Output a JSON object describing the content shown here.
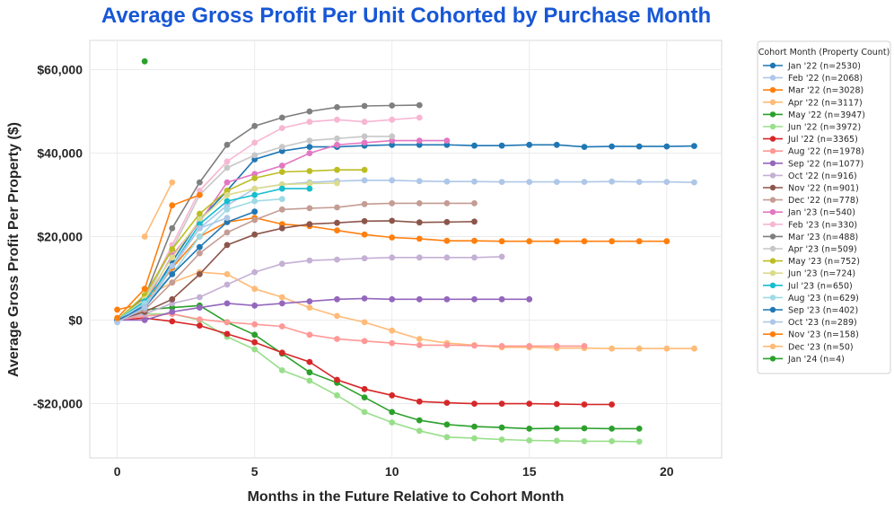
{
  "chart_data": {
    "type": "line",
    "title": "Average Gross Profit Per Unit Cohorted by Purchase Month",
    "xlabel": "Months in the Future Relative to Cohort Month",
    "ylabel": "Average Gross Profit Per Property ($)",
    "xlim": [
      -1,
      22
    ],
    "ylim": [
      -33000,
      67000
    ],
    "xticks": [
      0,
      5,
      10,
      15,
      20
    ],
    "yticks": [
      -20000,
      0,
      20000,
      40000,
      60000
    ],
    "ytick_labels": [
      "-$20,000",
      "$0",
      "$20,000",
      "$40,000",
      "$60,000"
    ],
    "grid": true,
    "legend": {
      "title": "Cohort Month (Property Count)",
      "location": "outside-right"
    },
    "series": [
      {
        "name": "Jan '22 (n=2530)",
        "color": "#1f77b4",
        "x": [
          0,
          1,
          2,
          3,
          4,
          5,
          6,
          7,
          8,
          9,
          10,
          11,
          12,
          13,
          14,
          15,
          16,
          17,
          18,
          19,
          20,
          21
        ],
        "y": [
          0,
          3500,
          14000,
          24000,
          31000,
          38500,
          40500,
          41500,
          41500,
          41800,
          42000,
          42000,
          42000,
          41800,
          41800,
          42000,
          42000,
          41500,
          41600,
          41600,
          41600,
          41700
        ]
      },
      {
        "name": "Feb '22 (n=2068)",
        "color": "#aec7e8",
        "x": [
          0,
          1,
          2,
          3,
          4,
          5,
          6,
          7,
          8,
          9,
          10,
          11,
          12,
          13,
          14,
          15,
          16,
          17,
          18,
          19,
          20,
          21
        ],
        "y": [
          0,
          3000,
          12500,
          22000,
          27500,
          31500,
          32500,
          33000,
          33300,
          33500,
          33500,
          33300,
          33200,
          33200,
          33100,
          33100,
          33100,
          33100,
          33200,
          33100,
          33100,
          33000
        ]
      },
      {
        "name": "Mar '22 (n=3028)",
        "color": "#ff7f0e",
        "x": [
          0,
          1,
          2,
          3,
          4,
          5,
          6,
          7,
          8,
          9,
          10,
          11,
          12,
          13,
          14,
          15,
          16,
          17,
          18,
          19,
          20
        ],
        "y": [
          2500,
          4000,
          12500,
          20000,
          23500,
          24500,
          23000,
          22500,
          21500,
          20500,
          19800,
          19500,
          19000,
          19000,
          18900,
          18900,
          18900,
          18900,
          18900,
          18900,
          18900
        ]
      },
      {
        "name": "Apr '22 (n=3117)",
        "color": "#ffbb78",
        "x": [
          0,
          1,
          2,
          3,
          4,
          5,
          6,
          7,
          8,
          9,
          10,
          11,
          12,
          13,
          14,
          15,
          16,
          17,
          18,
          19,
          20,
          21
        ],
        "y": [
          0,
          5500,
          9000,
          11500,
          11000,
          7500,
          5500,
          3000,
          1000,
          -500,
          -2500,
          -4500,
          -5500,
          -6000,
          -6500,
          -6500,
          -6700,
          -6700,
          -6800,
          -6800,
          -6800,
          -6800
        ]
      },
      {
        "name": "May '22 (n=3947)",
        "color": "#2ca02c",
        "x": [
          0,
          1,
          2,
          3,
          4,
          5,
          6,
          7,
          8,
          9,
          10,
          11,
          12,
          13,
          14,
          15,
          16,
          17,
          18,
          19
        ],
        "y": [
          0,
          2500,
          3000,
          3500,
          -500,
          -3500,
          -8000,
          -12500,
          -15000,
          -18500,
          -22000,
          -24000,
          -25000,
          -25500,
          -25700,
          -26000,
          -25900,
          -25900,
          -26000,
          -26000
        ]
      },
      {
        "name": "Jun '22 (n=3972)",
        "color": "#98df8a",
        "x": [
          0,
          1,
          2,
          3,
          4,
          5,
          6,
          7,
          8,
          9,
          10,
          11,
          12,
          13,
          14,
          15,
          16,
          17,
          18,
          19
        ],
        "y": [
          0,
          1500,
          1500,
          0,
          -4000,
          -7000,
          -12000,
          -14500,
          -18000,
          -22000,
          -24500,
          -26500,
          -28000,
          -28300,
          -28600,
          -28800,
          -28900,
          -29000,
          -29000,
          -29100
        ]
      },
      {
        "name": "Jul '22 (n=3365)",
        "color": "#d62728",
        "x": [
          0,
          1,
          2,
          3,
          4,
          5,
          6,
          7,
          8,
          9,
          10,
          11,
          12,
          13,
          14,
          15,
          16,
          17,
          18
        ],
        "y": [
          0,
          500,
          -300,
          -1300,
          -3300,
          -5300,
          -7800,
          -10000,
          -14300,
          -16500,
          -18000,
          -19500,
          -19800,
          -20000,
          -20000,
          -20000,
          -20100,
          -20200,
          -20200
        ]
      },
      {
        "name": "Aug '22 (n=1978)",
        "color": "#ff9896",
        "x": [
          0,
          1,
          2,
          3,
          4,
          5,
          6,
          7,
          8,
          9,
          10,
          11,
          12,
          13,
          14,
          15,
          16,
          17
        ],
        "y": [
          0,
          1000,
          1500,
          200,
          -500,
          -1000,
          -1500,
          -3500,
          -4500,
          -5000,
          -5500,
          -6000,
          -6000,
          -6100,
          -6200,
          -6200,
          -6200,
          -6200
        ]
      },
      {
        "name": "Sep '22 (n=1077)",
        "color": "#9467bd",
        "x": [
          0,
          1,
          2,
          3,
          4,
          5,
          6,
          7,
          8,
          9,
          10,
          11,
          12,
          13,
          14,
          15
        ],
        "y": [
          0,
          0,
          2000,
          3000,
          4000,
          3500,
          4000,
          4500,
          5000,
          5200,
          5000,
          5000,
          5000,
          5000,
          5000,
          5000
        ]
      },
      {
        "name": "Oct '22 (n=916)",
        "color": "#c5b0d5",
        "x": [
          0,
          1,
          2,
          3,
          4,
          5,
          6,
          7,
          8,
          9,
          10,
          11,
          12,
          13,
          14
        ],
        "y": [
          0,
          1500,
          4000,
          5500,
          8500,
          11500,
          13500,
          14300,
          14500,
          14800,
          15000,
          15000,
          15000,
          15000,
          15200
        ]
      },
      {
        "name": "Nov '22 (n=901)",
        "color": "#8c564b",
        "x": [
          0,
          1,
          2,
          3,
          4,
          5,
          6,
          7,
          8,
          9,
          10,
          11,
          12,
          13
        ],
        "y": [
          0,
          2000,
          5000,
          11000,
          18000,
          20500,
          22000,
          23000,
          23300,
          23700,
          23800,
          23400,
          23500,
          23600
        ]
      },
      {
        "name": "Dec '22 (n=778)",
        "color": "#c49c94",
        "x": [
          0,
          1,
          2,
          3,
          4,
          5,
          6,
          7,
          8,
          9,
          10,
          11,
          12,
          13
        ],
        "y": [
          0,
          2500,
          9000,
          16000,
          21000,
          24000,
          26500,
          26800,
          27000,
          27800,
          28000,
          28000,
          28000,
          28000
        ]
      },
      {
        "name": "Jan '23 (n=540)",
        "color": "#e377c2",
        "x": [
          0,
          1,
          2,
          3,
          4,
          5,
          6,
          7,
          8,
          9,
          10,
          11,
          12
        ],
        "y": [
          0,
          4000,
          15500,
          23500,
          33000,
          35000,
          37000,
          40000,
          42000,
          42500,
          43000,
          43000,
          43000
        ]
      },
      {
        "name": "Feb '23 (n=330)",
        "color": "#f7b6d2",
        "x": [
          0,
          1,
          2,
          3,
          4,
          5,
          6,
          7,
          8,
          9,
          10,
          11
        ],
        "y": [
          0,
          5000,
          18000,
          31000,
          38000,
          42500,
          46000,
          47500,
          48000,
          47500,
          48000,
          48500
        ]
      },
      {
        "name": "Mar '23 (n=488)",
        "color": "#7f7f7f",
        "x": [
          0,
          1,
          2,
          3,
          4,
          5,
          6,
          7,
          8,
          9,
          10,
          11
        ],
        "y": [
          0,
          5500,
          22000,
          33000,
          42000,
          46500,
          48500,
          50000,
          51000,
          51300,
          51400,
          51500
        ]
      },
      {
        "name": "Apr '23 (n=509)",
        "color": "#c7c7c7",
        "x": [
          0,
          1,
          2,
          3,
          4,
          5,
          6,
          7,
          8,
          9,
          10
        ],
        "y": [
          0,
          5000,
          17000,
          30000,
          36500,
          39500,
          41500,
          43000,
          43500,
          44000,
          44000
        ]
      },
      {
        "name": "May '23 (n=752)",
        "color": "#bcbd22",
        "x": [
          0,
          1,
          2,
          3,
          4,
          5,
          6,
          7,
          8,
          9
        ],
        "y": [
          0,
          6000,
          17000,
          25500,
          31000,
          34000,
          35500,
          35700,
          36000,
          36000
        ]
      },
      {
        "name": "Jun '23 (n=724)",
        "color": "#dbdb8d",
        "x": [
          0,
          1,
          2,
          3,
          4,
          5,
          6,
          7,
          8
        ],
        "y": [
          0,
          5000,
          15000,
          24000,
          30000,
          31500,
          32500,
          32700,
          32800
        ]
      },
      {
        "name": "Jul '23 (n=650)",
        "color": "#17becf",
        "x": [
          0,
          1,
          2,
          3,
          4,
          5,
          6,
          7
        ],
        "y": [
          0,
          4500,
          13000,
          23000,
          28500,
          30000,
          31500,
          31500
        ]
      },
      {
        "name": "Aug '23 (n=629)",
        "color": "#9edae5",
        "x": [
          0,
          1,
          2,
          3,
          4,
          5,
          6
        ],
        "y": [
          0,
          4000,
          11000,
          20000,
          26500,
          28500,
          29000
        ]
      },
      {
        "name": "Sep '23 (n=402)",
        "color": "#1f77b4",
        "x": [
          0,
          1,
          2,
          3,
          4,
          5
        ],
        "y": [
          0,
          3000,
          11000,
          17500,
          23500,
          26000
        ]
      },
      {
        "name": "Oct '23 (n=289)",
        "color": "#aec7e8",
        "x": [
          0,
          1,
          2,
          3,
          4
        ],
        "y": [
          -500,
          3000,
          13000,
          22000,
          24500
        ]
      },
      {
        "name": "Nov '23 (n=158)",
        "color": "#ff7f0e",
        "x": [
          0,
          1,
          2,
          3
        ],
        "y": [
          500,
          7500,
          27500,
          30000
        ]
      },
      {
        "name": "Dec '23 (n=50)",
        "color": "#ffbb78",
        "x": [
          1,
          2
        ],
        "y": [
          20000,
          33000
        ]
      },
      {
        "name": "Jan '24 (n=4)",
        "color": "#2ca02c",
        "x": [
          1
        ],
        "y": [
          62000
        ]
      }
    ]
  }
}
